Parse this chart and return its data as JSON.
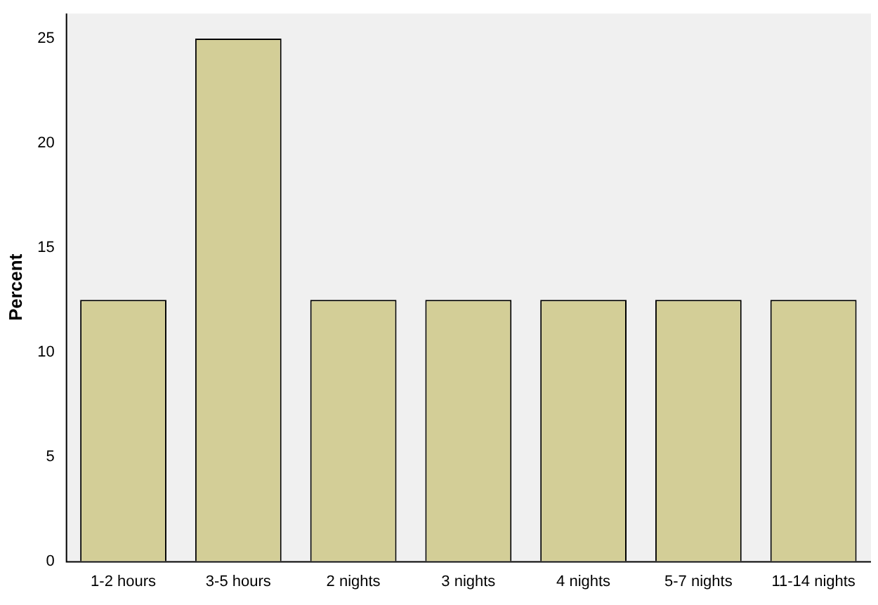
{
  "chart_data": {
    "type": "bar",
    "ylabel": "Percent",
    "categories": [
      "1-2 hours",
      "3-5 hours",
      "2 nights",
      "3 nights",
      "4 nights",
      "5-7 nights",
      "11-14 nights"
    ],
    "values": [
      12.5,
      25,
      12.5,
      12.5,
      12.5,
      12.5,
      12.5
    ],
    "color": "#d3ce97",
    "ylim": [
      0,
      26.2
    ],
    "yticks": [
      0,
      5,
      10,
      15,
      20,
      25
    ],
    "grid": false
  }
}
